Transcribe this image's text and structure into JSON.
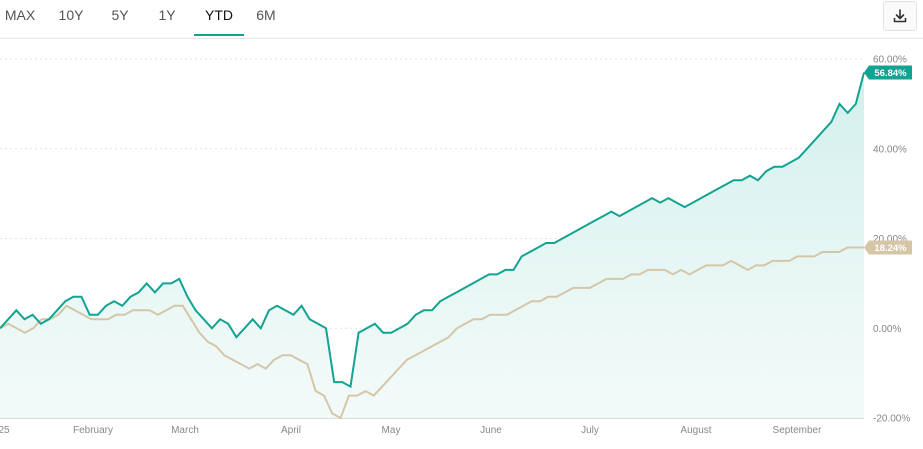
{
  "tabs": [
    {
      "label": "MAX",
      "active": false
    },
    {
      "label": "10Y",
      "active": false
    },
    {
      "label": "5Y",
      "active": false
    },
    {
      "label": "1Y",
      "active": false
    },
    {
      "label": "YTD",
      "active": true
    },
    {
      "label": "6M",
      "active": false
    }
  ],
  "download_icon": "download-icon",
  "colors": {
    "accent": "#13a394",
    "series_main": "#12a392",
    "series_benchmark": "#d6c6a8",
    "area_fill": "#d9f1ee"
  },
  "chart_data": {
    "type": "line",
    "x_axis_labels": [
      "25",
      "February",
      "March",
      "April",
      "May",
      "June",
      "July",
      "August",
      "September"
    ],
    "y_axis_labels": [
      "60.00%",
      "40.00%",
      "20.00%",
      "0.00%",
      "-20.00%"
    ],
    "ylim": [
      -20,
      60
    ],
    "grid": "horizontal-dashed",
    "series": [
      {
        "end_label": "56.84%",
        "style": "line-with-area",
        "values": [
          0,
          2,
          4,
          2,
          3,
          1,
          2,
          4,
          6,
          7,
          7,
          3,
          3,
          5,
          6,
          5,
          7,
          8,
          10,
          8,
          10,
          10,
          11,
          7,
          4,
          2,
          0,
          2,
          1,
          -2,
          0,
          2,
          0,
          4,
          5,
          4,
          3,
          5,
          2,
          1,
          0,
          -12,
          -12,
          -13,
          -1,
          0,
          1,
          -1,
          -1,
          0,
          1,
          3,
          4,
          4,
          6,
          7,
          8,
          9,
          10,
          11,
          12,
          12,
          13,
          13,
          16,
          17,
          18,
          19,
          19,
          20,
          21,
          22,
          23,
          24,
          25,
          26,
          25,
          26,
          27,
          28,
          29,
          28,
          29,
          28,
          27,
          28,
          29,
          30,
          31,
          32,
          33,
          33,
          34,
          33,
          35,
          36,
          36,
          37,
          38,
          40,
          42,
          44,
          46,
          50,
          48,
          50,
          57
        ]
      },
      {
        "end_label": "18.24%",
        "style": "line",
        "values": [
          0,
          1,
          0,
          -1,
          0,
          2,
          2,
          3,
          5,
          4,
          3,
          2,
          2,
          2,
          3,
          3,
          4,
          4,
          4,
          3,
          4,
          5,
          5,
          2,
          -1,
          -3,
          -4,
          -6,
          -7,
          -8,
          -9,
          -8,
          -9,
          -7,
          -6,
          -6,
          -7,
          -8,
          -14,
          -15,
          -19,
          -20,
          -15,
          -15,
          -14,
          -15,
          -13,
          -11,
          -9,
          -7,
          -6,
          -5,
          -4,
          -3,
          -2,
          0,
          1,
          2,
          2,
          3,
          3,
          3,
          4,
          5,
          6,
          6,
          7,
          7,
          8,
          9,
          9,
          9,
          10,
          11,
          11,
          11,
          12,
          12,
          13,
          13,
          13,
          12,
          13,
          12,
          13,
          14,
          14,
          14,
          15,
          14,
          13,
          14,
          14,
          15,
          15,
          15,
          16,
          16,
          16,
          17,
          17,
          17,
          18,
          18,
          18
        ]
      }
    ]
  }
}
